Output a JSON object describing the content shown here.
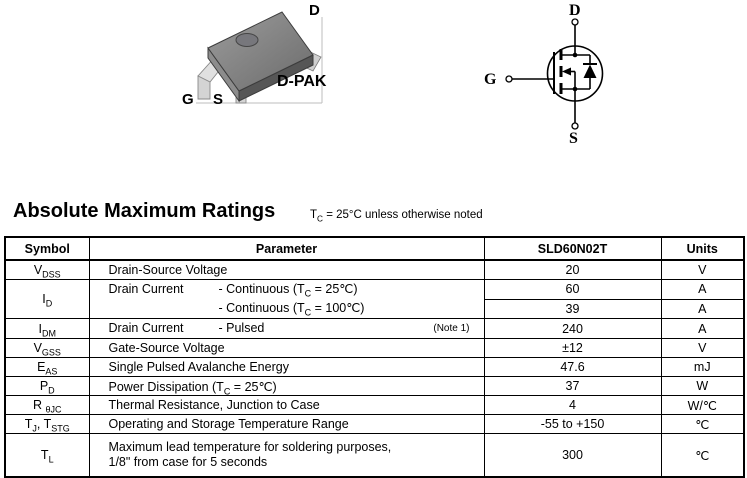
{
  "package_diagram": {
    "name_label": "D-PAK",
    "labels": {
      "drain": "D",
      "gate": "G",
      "source": "S"
    }
  },
  "mosfet_symbol": {
    "labels": {
      "drain": "D",
      "gate": "G",
      "source": "S"
    }
  },
  "section": {
    "title": "Absolute Maximum Ratings",
    "condition_note": [
      {
        "t": "T"
      },
      {
        "s": "C"
      },
      {
        "t": " = 25°C unless otherwise noted"
      }
    ]
  },
  "table": {
    "headers": {
      "symbol": "Symbol",
      "parameter": "Parameter",
      "part": "SLD60N02T",
      "units": "Units"
    },
    "rows": {
      "vdss": {
        "symbol": [
          {
            "t": "V"
          },
          {
            "s": "DSS"
          }
        ],
        "param": [
          {
            "t": "Drain-Source Voltage"
          }
        ],
        "value": "20",
        "unit": "V"
      },
      "id": {
        "symbol": [
          {
            "t": "I"
          },
          {
            "s": "D"
          }
        ],
        "label": "Drain Current",
        "cond1": [
          {
            "t": "- Continuous (T"
          },
          {
            "s": "C"
          },
          {
            "t": " = 25℃)"
          }
        ],
        "value1": "60",
        "unit1": "A",
        "cond2": [
          {
            "t": "- Continuous (T"
          },
          {
            "s": "C"
          },
          {
            "t": " = 100℃)"
          }
        ],
        "value2": "39",
        "unit2": "A"
      },
      "idm": {
        "symbol": [
          {
            "t": "I"
          },
          {
            "s": "DM"
          }
        ],
        "label": "Drain Current",
        "cond": [
          {
            "t": "- Pulsed"
          }
        ],
        "note": "(Note 1)",
        "value": "240",
        "unit": "A"
      },
      "vgss": {
        "symbol": [
          {
            "t": "V"
          },
          {
            "s": "GSS"
          }
        ],
        "param": [
          {
            "t": "Gate-Source Voltage"
          }
        ],
        "value": "±12",
        "unit": "V"
      },
      "eas": {
        "symbol": [
          {
            "t": "E"
          },
          {
            "s": "AS"
          }
        ],
        "param": [
          {
            "t": "Single Pulsed Avalanche Energy"
          }
        ],
        "value": "47.6",
        "unit": "mJ"
      },
      "pd": {
        "symbol": [
          {
            "t": "P"
          },
          {
            "s": "D"
          }
        ],
        "param": [
          {
            "t": "Power Dissipation (T"
          },
          {
            "s": "C"
          },
          {
            "t": " = 25℃)"
          }
        ],
        "value": "37",
        "unit": "W"
      },
      "rthjc": {
        "symbol": [
          {
            "t": "R "
          },
          {
            "s": "θJC"
          }
        ],
        "param": [
          {
            "t": "Thermal Resistance, Junction to Case"
          }
        ],
        "value": "4",
        "unit": "W/℃"
      },
      "tjtstg": {
        "symbol": [
          {
            "t": "T"
          },
          {
            "s": "J"
          },
          {
            "t": ", T"
          },
          {
            "s": "STG"
          }
        ],
        "param": [
          {
            "t": "Operating and Storage Temperature Range"
          }
        ],
        "value": "-55 to +150",
        "unit": "℃"
      },
      "tl": {
        "symbol": [
          {
            "t": "T"
          },
          {
            "s": "L"
          }
        ],
        "param_line1": "Maximum lead temperature for soldering purposes,",
        "param_line2": "1/8\" from case for 5 seconds",
        "value": "300",
        "unit": "℃"
      }
    }
  }
}
